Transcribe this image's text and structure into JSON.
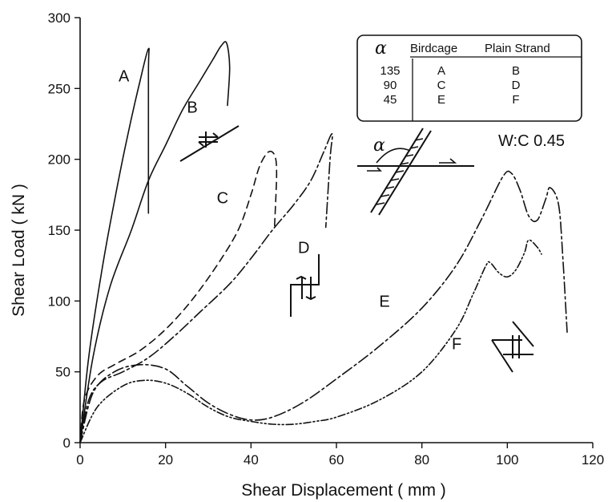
{
  "chart_data": {
    "type": "line",
    "xlabel": "Shear Displacement ( mm )",
    "ylabel": "Shear Load ( kN )",
    "xlim": [
      0,
      120
    ],
    "ylim": [
      0,
      300
    ],
    "xticks": [
      "0",
      "20",
      "40",
      "60",
      "80",
      "100",
      "120"
    ],
    "yticks": [
      "0",
      "50",
      "100",
      "150",
      "200",
      "250",
      "300"
    ],
    "grid": false,
    "series": [
      {
        "name": "A",
        "dash": "",
        "points": [
          [
            0,
            0
          ],
          [
            2,
            60
          ],
          [
            5,
            120
          ],
          [
            8,
            170
          ],
          [
            11,
            215
          ],
          [
            14,
            255
          ],
          [
            16,
            278
          ],
          [
            16,
            260
          ],
          [
            16,
            162
          ]
        ]
      },
      {
        "name": "B",
        "dash": "",
        "points": [
          [
            0,
            0
          ],
          [
            3,
            60
          ],
          [
            7,
            110
          ],
          [
            12,
            150
          ],
          [
            16,
            185
          ],
          [
            20,
            210
          ],
          [
            24,
            235
          ],
          [
            28,
            255
          ],
          [
            31,
            270
          ],
          [
            33,
            280
          ],
          [
            34.3,
            282
          ],
          [
            35,
            265
          ],
          [
            34.5,
            238
          ]
        ]
      },
      {
        "name": "C",
        "dash": "9,6",
        "points": [
          [
            0,
            0
          ],
          [
            1,
            30
          ],
          [
            4,
            47
          ],
          [
            8,
            55
          ],
          [
            14,
            65
          ],
          [
            20,
            80
          ],
          [
            26,
            100
          ],
          [
            32,
            125
          ],
          [
            37,
            150
          ],
          [
            40,
            175
          ],
          [
            42,
            195
          ],
          [
            44,
            205
          ],
          [
            45.5,
            203
          ],
          [
            46,
            190
          ],
          [
            45.5,
            152
          ]
        ]
      },
      {
        "name": "D",
        "dash": "14,4,3,4",
        "points": [
          [
            0,
            0
          ],
          [
            2,
            30
          ],
          [
            5,
            43
          ],
          [
            10,
            50
          ],
          [
            16,
            60
          ],
          [
            22,
            75
          ],
          [
            28,
            92
          ],
          [
            35,
            112
          ],
          [
            40,
            130
          ],
          [
            45,
            150
          ],
          [
            50,
            168
          ],
          [
            54,
            185
          ],
          [
            57,
            205
          ],
          [
            59,
            218
          ],
          [
            58.5,
            200
          ],
          [
            57.5,
            152
          ]
        ]
      },
      {
        "name": "E",
        "dash": "14,4,3,4",
        "points": [
          [
            0,
            0
          ],
          [
            3,
            35
          ],
          [
            8,
            50
          ],
          [
            14,
            55
          ],
          [
            20,
            52
          ],
          [
            25,
            40
          ],
          [
            30,
            28
          ],
          [
            35,
            20
          ],
          [
            40,
            16
          ],
          [
            45,
            18
          ],
          [
            52,
            28
          ],
          [
            60,
            45
          ],
          [
            70,
            68
          ],
          [
            80,
            95
          ],
          [
            88,
            125
          ],
          [
            94,
            158
          ],
          [
            99,
            188
          ],
          [
            101,
            190
          ],
          [
            103,
            178
          ],
          [
            105,
            160
          ],
          [
            107,
            157
          ],
          [
            109,
            172
          ],
          [
            110,
            180
          ],
          [
            112,
            168
          ],
          [
            113,
            130
          ],
          [
            114,
            78
          ]
        ]
      },
      {
        "name": "F",
        "dash": "9,3,2,3,2,3",
        "points": [
          [
            0,
            0
          ],
          [
            4,
            25
          ],
          [
            10,
            40
          ],
          [
            15,
            44
          ],
          [
            20,
            42
          ],
          [
            25,
            35
          ],
          [
            30,
            25
          ],
          [
            35,
            18
          ],
          [
            40,
            15
          ],
          [
            45,
            13
          ],
          [
            50,
            13
          ],
          [
            55,
            15
          ],
          [
            60,
            18
          ],
          [
            70,
            30
          ],
          [
            80,
            50
          ],
          [
            88,
            80
          ],
          [
            92,
            105
          ],
          [
            95,
            125
          ],
          [
            96,
            127
          ],
          [
            98,
            120
          ],
          [
            100,
            117
          ],
          [
            102,
            122
          ],
          [
            104,
            134
          ],
          [
            105,
            143
          ],
          [
            107,
            138
          ],
          [
            108,
            133
          ]
        ]
      }
    ],
    "curve_labels": [
      {
        "text": "A",
        "x": 16.5,
        "y": 255
      },
      {
        "text": "B",
        "x": 25,
        "y": 233
      },
      {
        "text": "C",
        "x": 32,
        "y": 169
      },
      {
        "text": "D",
        "x": 51,
        "y": 134
      },
      {
        "text": "E",
        "x": 70,
        "y": 96
      },
      {
        "text": "F",
        "x": 87,
        "y": 66
      }
    ],
    "legend": {
      "placement": "top-right",
      "head": {
        "alpha": "α",
        "birdcage": "Birdcage",
        "plain": "Plain Strand"
      },
      "rows": [
        {
          "alpha": "135",
          "birdcage": "A",
          "plain": "B"
        },
        {
          "alpha": "90",
          "birdcage": "C",
          "plain": "D"
        },
        {
          "alpha": "45",
          "birdcage": "E",
          "plain": "F"
        }
      ]
    },
    "annotations": {
      "wc": "W:C 0.45",
      "alpha_symbol": "α"
    }
  }
}
